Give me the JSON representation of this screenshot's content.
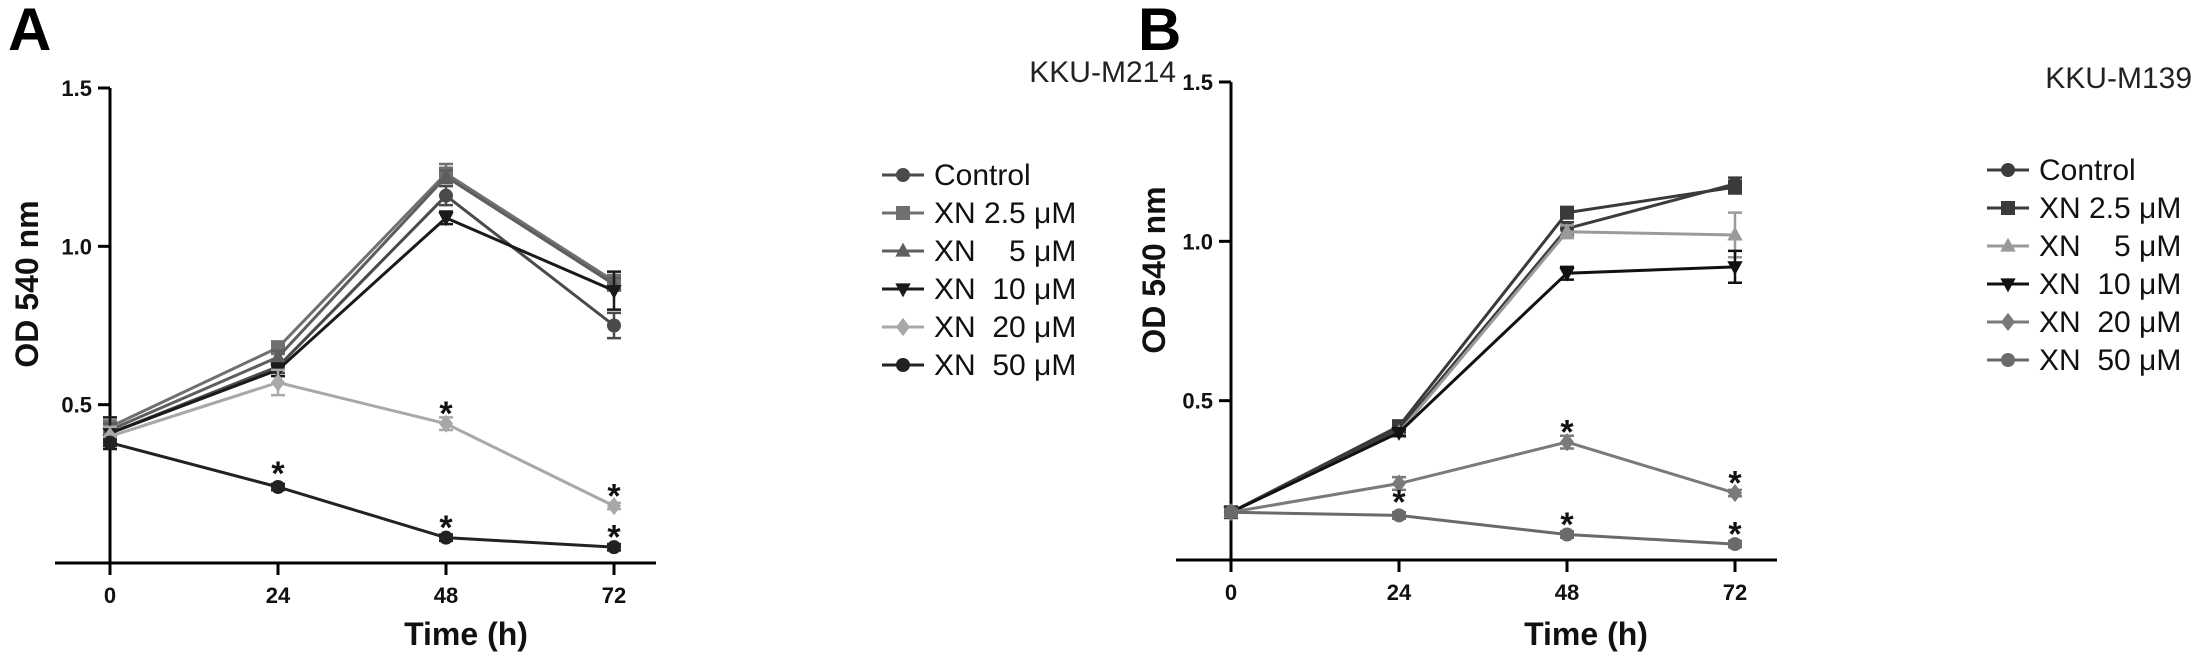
{
  "chart_data": [
    {
      "type": "line",
      "panel": "A",
      "title": "KKU-M214",
      "xlabel": "Time (h)",
      "ylabel": "OD 540 nm",
      "x": [
        0,
        24,
        48,
        72
      ],
      "x_ticks": [
        "0",
        "24",
        "48",
        "72"
      ],
      "y_ticks": [
        "0.5",
        "1.0",
        "1.5"
      ],
      "xlim": [
        0,
        78
      ],
      "ylim": [
        0.0,
        1.5
      ],
      "legend_position": "right",
      "series": [
        {
          "name": "Control",
          "marker": "circle",
          "color": "#4a4a4a",
          "values": [
            0.41,
            0.62,
            1.16,
            0.75
          ],
          "errors": [
            0.02,
            0.02,
            0.03,
            0.04
          ]
        },
        {
          "name": "XN 2.5 μM",
          "marker": "square",
          "color": "#707070",
          "values": [
            0.43,
            0.68,
            1.23,
            0.89
          ],
          "errors": [
            0.02,
            0.02,
            0.03,
            0.02
          ]
        },
        {
          "name": "XN    5 μM",
          "marker": "triangle-up",
          "color": "#5e5e5e",
          "values": [
            0.42,
            0.65,
            1.22,
            0.88
          ],
          "errors": [
            0.02,
            0.02,
            0.02,
            0.02
          ]
        },
        {
          "name": "XN  10 μM",
          "marker": "triangle-down",
          "color": "#1a1a1a",
          "values": [
            0.41,
            0.61,
            1.09,
            0.86
          ],
          "errors": [
            0.05,
            0.02,
            0.02,
            0.06
          ]
        },
        {
          "name": "XN  20 μM",
          "marker": "diamond",
          "color": "#a8a8a8",
          "values": [
            0.4,
            0.57,
            0.44,
            0.18
          ],
          "errors": [
            0.03,
            0.04,
            0.02,
            0.01
          ]
        },
        {
          "name": "XN  50 μM",
          "marker": "circle",
          "color": "#222222",
          "values": [
            0.38,
            0.24,
            0.08,
            0.05
          ],
          "errors": [
            0.01,
            0.01,
            0.01,
            0.01
          ]
        }
      ],
      "annotations": [
        {
          "text": "*",
          "x": 24,
          "y": 0.29
        },
        {
          "text": "*",
          "x": 48,
          "y": 0.48
        },
        {
          "text": "*",
          "x": 48,
          "y": 0.12
        },
        {
          "text": "*",
          "x": 72,
          "y": 0.22
        },
        {
          "text": "*",
          "x": 72,
          "y": 0.09
        }
      ]
    },
    {
      "type": "line",
      "panel": "B",
      "title": "KKU-M139",
      "xlabel": "Time (h)",
      "ylabel": "OD 540 nm",
      "x": [
        0,
        24,
        48,
        72
      ],
      "x_ticks": [
        "0",
        "24",
        "48",
        "72"
      ],
      "y_ticks": [
        "0.5",
        "1.0",
        "1.5"
      ],
      "xlim": [
        0,
        78
      ],
      "ylim": [
        0.0,
        1.5
      ],
      "legend_position": "right",
      "series": [
        {
          "name": "Control",
          "marker": "circle",
          "color": "#3c3c3c",
          "values": [
            0.15,
            0.41,
            1.04,
            1.18
          ],
          "errors": [
            0.01,
            0.01,
            0.02,
            0.02
          ]
        },
        {
          "name": "XN 2.5 μM",
          "marker": "square",
          "color": "#3a3a3a",
          "values": [
            0.15,
            0.42,
            1.09,
            1.17
          ],
          "errors": [
            0.01,
            0.01,
            0.01,
            0.02
          ]
        },
        {
          "name": "XN    5 μM",
          "marker": "triangle-up",
          "color": "#9a9a9a",
          "values": [
            0.15,
            0.4,
            1.03,
            1.02
          ],
          "errors": [
            0.01,
            0.01,
            0.02,
            0.07
          ]
        },
        {
          "name": "XN  10 μM",
          "marker": "triangle-down",
          "color": "#111111",
          "values": [
            0.15,
            0.4,
            0.9,
            0.92
          ],
          "errors": [
            0.01,
            0.01,
            0.02,
            0.05
          ]
        },
        {
          "name": "XN  20 μM",
          "marker": "diamond",
          "color": "#7a7a7a",
          "values": [
            0.15,
            0.24,
            0.37,
            0.21
          ],
          "errors": [
            0.01,
            0.02,
            0.02,
            0.01
          ]
        },
        {
          "name": "XN  50 μM",
          "marker": "circle",
          "color": "#6a6a6a",
          "values": [
            0.15,
            0.14,
            0.08,
            0.05
          ],
          "errors": [
            0.01,
            0.01,
            0.01,
            0.01
          ]
        }
      ],
      "annotations": [
        {
          "text": "*",
          "x": 24,
          "y": 0.19
        },
        {
          "text": "*",
          "x": 48,
          "y": 0.41
        },
        {
          "text": "*",
          "x": 48,
          "y": 0.12
        },
        {
          "text": "*",
          "x": 72,
          "y": 0.25
        },
        {
          "text": "*",
          "x": 72,
          "y": 0.09
        }
      ]
    }
  ]
}
